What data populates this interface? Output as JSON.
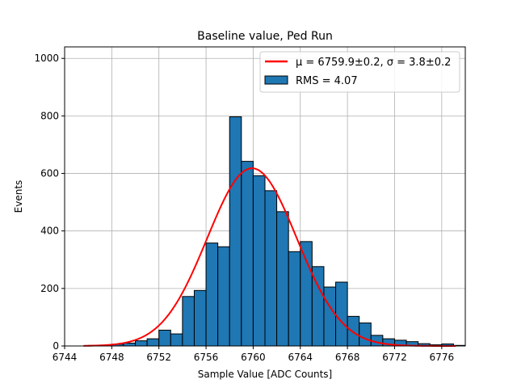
{
  "chart_data": {
    "type": "histogram",
    "title": "Baseline value, Ped Run",
    "xlabel": "Sample Value [ADC Counts]",
    "ylabel": "Events",
    "xlim": [
      6744,
      6778
    ],
    "ylim": [
      0,
      1040
    ],
    "xticks": [
      6744,
      6748,
      6752,
      6756,
      6760,
      6764,
      6768,
      6772,
      6776
    ],
    "xtick_labels": [
      "6744",
      "6748",
      "6752",
      "6756",
      "6760",
      "6764",
      "6768",
      "6772",
      "6776"
    ],
    "yticks": [
      0,
      200,
      400,
      600,
      800,
      1000
    ],
    "ytick_labels": [
      "0",
      "200",
      "400",
      "600",
      "800",
      "1000"
    ],
    "grid": true,
    "legend_position": "top-right",
    "bin_width": 1,
    "bins": [
      {
        "x0": 6746,
        "count": 2
      },
      {
        "x0": 6747,
        "count": 3
      },
      {
        "x0": 6748,
        "count": 6
      },
      {
        "x0": 6749,
        "count": 10
      },
      {
        "x0": 6750,
        "count": 18
      },
      {
        "x0": 6751,
        "count": 25
      },
      {
        "x0": 6752,
        "count": 55
      },
      {
        "x0": 6753,
        "count": 42
      },
      {
        "x0": 6754,
        "count": 172
      },
      {
        "x0": 6755,
        "count": 193
      },
      {
        "x0": 6756,
        "count": 358
      },
      {
        "x0": 6757,
        "count": 345
      },
      {
        "x0": 6758,
        "count": 797
      },
      {
        "x0": 6759,
        "count": 642
      },
      {
        "x0": 6760,
        "count": 592
      },
      {
        "x0": 6761,
        "count": 540
      },
      {
        "x0": 6762,
        "count": 467
      },
      {
        "x0": 6763,
        "count": 328
      },
      {
        "x0": 6764,
        "count": 363
      },
      {
        "x0": 6765,
        "count": 276
      },
      {
        "x0": 6766,
        "count": 205
      },
      {
        "x0": 6767,
        "count": 222
      },
      {
        "x0": 6768,
        "count": 103
      },
      {
        "x0": 6769,
        "count": 80
      },
      {
        "x0": 6770,
        "count": 37
      },
      {
        "x0": 6771,
        "count": 25
      },
      {
        "x0": 6772,
        "count": 20
      },
      {
        "x0": 6773,
        "count": 15
      },
      {
        "x0": 6774,
        "count": 8
      },
      {
        "x0": 6775,
        "count": 4
      },
      {
        "x0": 6776,
        "count": 7
      },
      {
        "x0": 6777,
        "count": 2
      }
    ],
    "fit": {
      "type": "gaussian",
      "mu": 6759.9,
      "sigma": 3.8,
      "amplitude": 618,
      "x_range": [
        6745.6,
        6777.2
      ],
      "color": "#ff0000"
    },
    "bar_color": "#1f77b4",
    "bar_edge_color": "#000000",
    "legend": [
      {
        "type": "line",
        "color": "#ff0000",
        "label": "μ = 6759.9±0.2, σ = 3.8±0.2"
      },
      {
        "type": "patch",
        "color": "#1f77b4",
        "label": "RMS = 4.07"
      }
    ]
  }
}
